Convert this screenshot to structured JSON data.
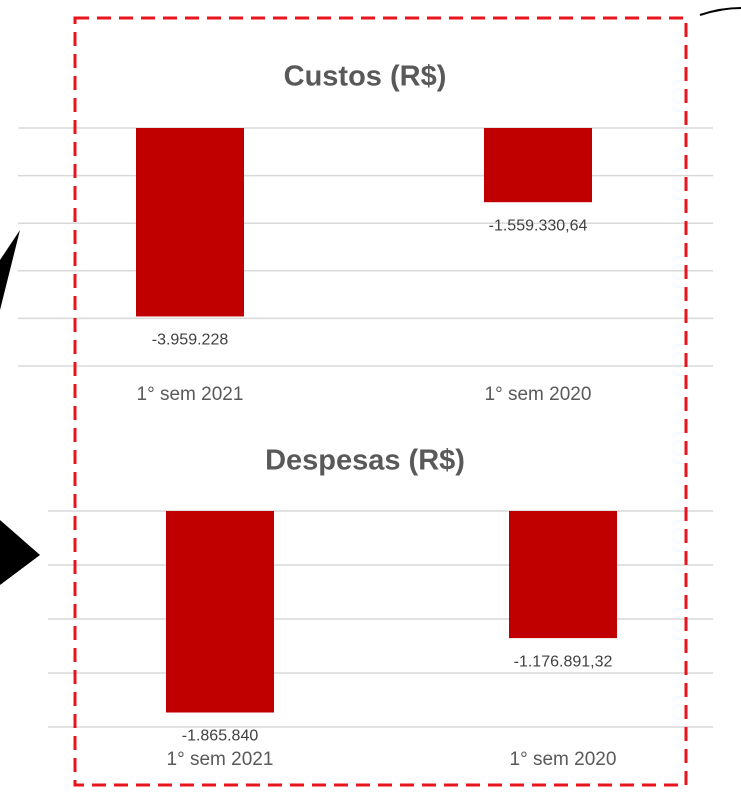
{
  "chart_data": [
    {
      "type": "bar",
      "title": "Custos (R$)",
      "categories": [
        "1° sem 2021",
        "1° sem 2020"
      ],
      "values": [
        -3959228,
        -1559330.64
      ],
      "value_labels": [
        "-3.959.228",
        "-1.559.330,64"
      ],
      "color": "#c00000",
      "ylim": [
        -5000000,
        0
      ],
      "yticks": [
        0,
        -1000000,
        -2000000,
        -3000000,
        -4000000,
        -5000000
      ],
      "grid": true
    },
    {
      "type": "bar",
      "title": "Despesas (R$)",
      "categories": [
        "1° sem 2021",
        "1° sem 2020"
      ],
      "values": [
        -1865840,
        -1176891.32
      ],
      "value_labels": [
        "-1.865.840",
        "-1.176.891,32"
      ],
      "color": "#c00000",
      "ylim": [
        -2000000,
        0
      ],
      "yticks": [
        0,
        -500000,
        -1000000,
        -1500000,
        -2000000
      ],
      "grid": true
    }
  ]
}
